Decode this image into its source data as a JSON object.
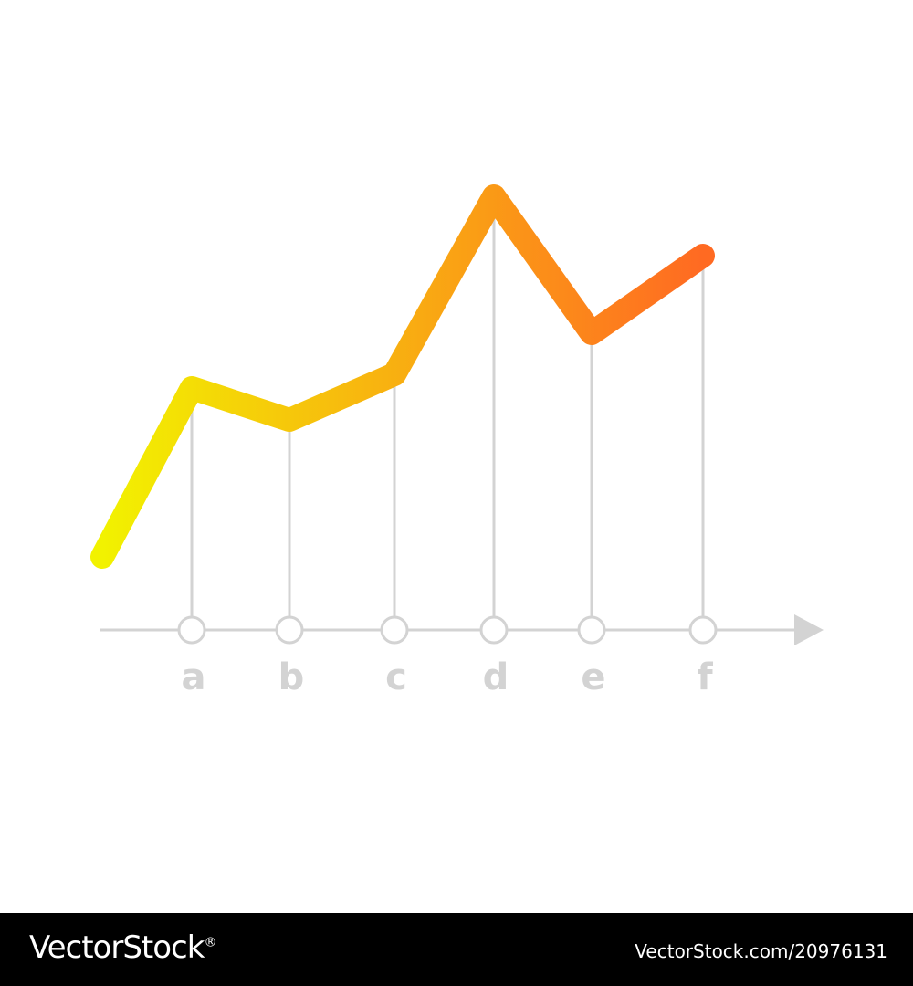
{
  "chart_data": {
    "type": "line",
    "categories": [
      "a",
      "b",
      "c",
      "d",
      "e",
      "f"
    ],
    "series": [
      {
        "values": [
          5.3,
          4.6,
          5.6,
          9.5,
          6.5,
          8.2
        ]
      }
    ],
    "start_value": 1.6,
    "ylim": [
      0,
      10
    ],
    "title": "",
    "xlabel": "",
    "ylabel": "",
    "grid": false,
    "legend": "none",
    "colors": {
      "gradient_start": "#f2f200",
      "gradient_end": "#ff6a22",
      "axis": "#d3d3d3",
      "labels": "#d3d3d3"
    }
  },
  "footer": {
    "brand": "VectorStock",
    "brand_mark": "®",
    "image_ref": "VectorStock.com/20976131"
  }
}
